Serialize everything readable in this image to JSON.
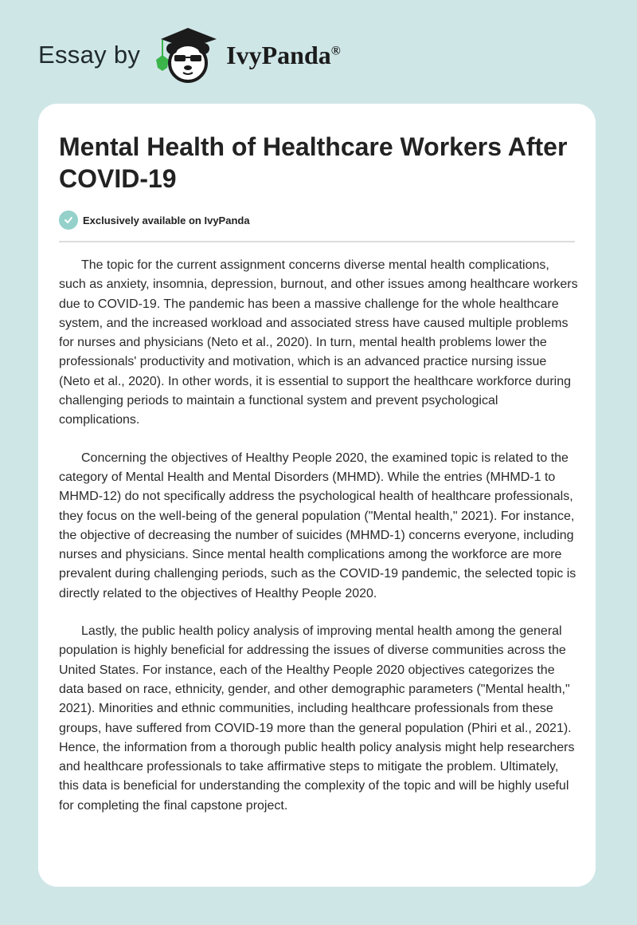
{
  "header": {
    "prefix": "Essay by",
    "brand": "IvyPanda",
    "registered": "®"
  },
  "article": {
    "title": "Mental Health of Healthcare Workers After COVID-19",
    "badge": "Exclusively available on IvyPanda",
    "badge_icon": "check-circle-icon",
    "paragraphs": [
      "The topic for the current assignment concerns diverse mental health complications, such as anxiety, insomnia, depression, burnout, and other issues among healthcare workers due to COVID-19. The pandemic has been a massive challenge for the whole healthcare system, and the increased workload and associated stress have caused multiple problems for nurses and physicians (Neto et al., 2020). In turn, mental health problems lower the professionals' productivity and motivation, which is an advanced practice nursing issue (Neto et al., 2020). In other words, it is essential to support the healthcare workforce during challenging periods to maintain a functional system and prevent psychological complications.",
      "Concerning the objectives of Healthy People 2020, the examined topic is related to the category of Mental Health and Mental Disorders (MHMD). While the entries (MHMD-1 to MHMD-12) do not specifically address the psychological health of healthcare professionals, they focus on the well-being of the general population (\"Mental health,\" 2021). For instance, the objective of decreasing the number of suicides (MHMD-1) concerns everyone, including nurses and physicians. Since mental health complications among the workforce are more prevalent during challenging periods, such as the COVID-19 pandemic, the selected topic is directly related to the objectives of Healthy People 2020.",
      "Lastly, the public health policy analysis of improving mental health among the general population is highly beneficial for addressing the issues of diverse communities across the United States. For instance, each of the Healthy People 2020 objectives categorizes the data based on race, ethnicity, gender, and other demographic parameters (\"Mental health,\" 2021). Minorities and ethnic communities, including healthcare professionals from these groups, have suffered from COVID-19 more than the general population (Phiri et al., 2021). Hence, the information from a thorough public health policy analysis might help researchers and healthcare professionals to take affirmative steps to mitigate the problem. Ultimately, this data is beneficial for understanding the complexity of the topic and will be highly useful for completing the final capstone project."
    ]
  },
  "colors": {
    "background": "#cfe6e7",
    "badge": "#94d1cb",
    "ivy": "#3bb54a"
  }
}
